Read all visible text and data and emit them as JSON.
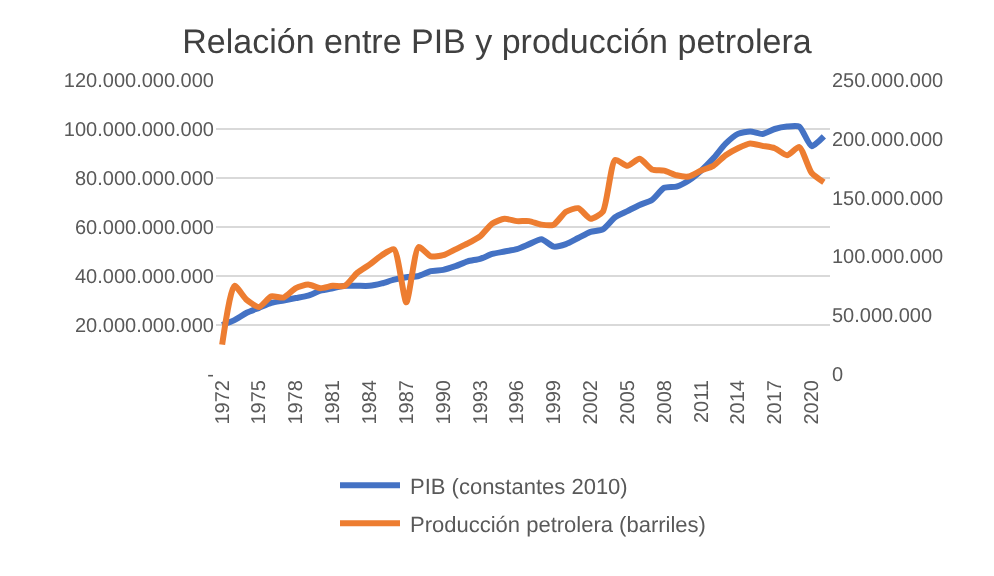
{
  "chart_data": {
    "type": "line",
    "title": "Relación entre PIB y producción petrolera",
    "categories": [
      "1972",
      null,
      null,
      "1975",
      null,
      null,
      "1978",
      null,
      null,
      "1981",
      null,
      null,
      "1984",
      null,
      null,
      "1987",
      null,
      null,
      "1990",
      null,
      null,
      "1993",
      null,
      null,
      "1996",
      null,
      null,
      "1999",
      null,
      null,
      "2002",
      null,
      null,
      "2005",
      null,
      null,
      "2008",
      null,
      null,
      "2011",
      null,
      null,
      "2014",
      null,
      null,
      "2017",
      null,
      null,
      "2020",
      null
    ],
    "series": [
      {
        "name": "PIB (constantes 2010)",
        "color": "#4472c4",
        "values": [
          20000000000,
          22000000000,
          25000000000,
          27000000000,
          29000000000,
          30000000000,
          31000000000,
          32000000000,
          34000000000,
          35000000000,
          36000000000,
          36000000000,
          36000000000,
          37000000000,
          38500000000,
          39500000000,
          40000000000,
          42000000000,
          42500000000,
          44000000000,
          46000000000,
          47000000000,
          49000000000,
          50000000000,
          51000000000,
          53000000000,
          55000000000,
          52000000000,
          53000000000,
          55500000000,
          58000000000,
          59000000000,
          64000000000,
          66500000000,
          69000000000,
          71000000000,
          76000000000,
          76500000000,
          79000000000,
          83000000000,
          88000000000,
          94000000000,
          98000000000,
          99000000000,
          98000000000,
          100000000000,
          101000000000,
          101000000000,
          93000000000,
          97000000000
        ]
      },
      {
        "name": "Producción petrolera (barriles)",
        "color": "#ed7d31",
        "axis": "y2",
        "values": [
          25000000,
          75000000,
          63000000,
          57000000,
          66000000,
          65000000,
          73000000,
          76000000,
          73000000,
          75000000,
          75000000,
          86000000,
          93000000,
          101000000,
          106000000,
          61000000,
          108000000,
          100000000,
          101000000,
          106000000,
          111000000,
          117000000,
          128000000,
          132000000,
          130000000,
          130000000,
          127000000,
          127000000,
          138000000,
          141000000,
          132000000,
          138000000,
          182000000,
          177000000,
          183000000,
          174000000,
          173000000,
          169000000,
          168000000,
          173000000,
          177000000,
          186000000,
          192000000,
          196000000,
          194000000,
          192000000,
          186000000,
          193000000,
          171000000,
          163000000
        ]
      }
    ],
    "ylim": [
      0,
      120000000000
    ],
    "yticks": [
      {
        "value": 0,
        "label": "-"
      },
      {
        "value": 20000000000,
        "label": "20.000.000.000"
      },
      {
        "value": 40000000000,
        "label": "40.000.000.000"
      },
      {
        "value": 60000000000,
        "label": "60.000.000.000"
      },
      {
        "value": 80000000000,
        "label": "80.000.000.000"
      },
      {
        "value": 100000000000,
        "label": "100.000.000.000"
      },
      {
        "value": 120000000000,
        "label": "120.000.000.000"
      }
    ],
    "y2lim": [
      0,
      250000000
    ],
    "y2ticks": [
      0,
      {
        "value": 50000000,
        "label": "50.000.000"
      },
      {
        "value": 100000000,
        "label": "100.000.000"
      },
      {
        "value": 150000000,
        "label": "150.000.000"
      },
      {
        "value": 200000000,
        "label": "200.000.000"
      },
      {
        "value": 250000000,
        "label": "250.000.000"
      }
    ],
    "grid": "y",
    "legend": "bottom",
    "marker": "none",
    "line_style": "solid"
  }
}
